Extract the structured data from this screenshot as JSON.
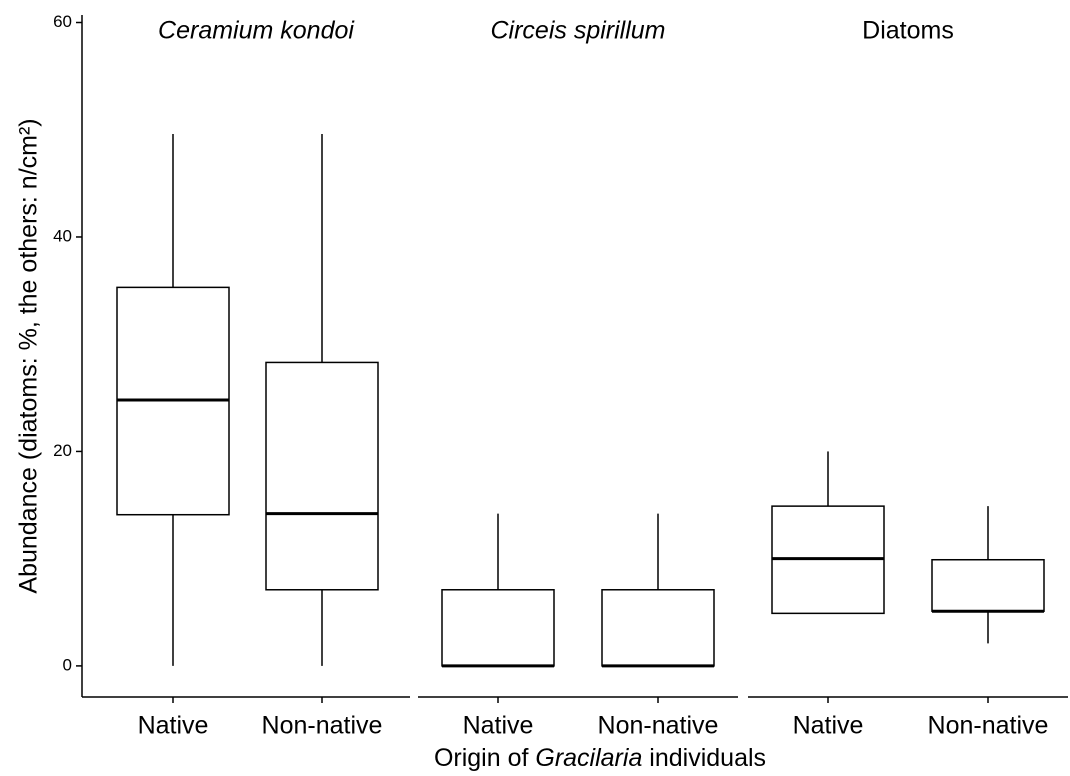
{
  "chart_data": {
    "type": "box",
    "ylabel": "Abundance (diatoms: %, the others: n/cm²)",
    "xlabel": [
      "Origin of ",
      "Gracilaria",
      " individuals"
    ],
    "ylim": [
      -2.9,
      60.7
    ],
    "yticks": [
      0,
      20,
      40,
      60
    ],
    "color": "#000000",
    "panels": [
      {
        "title": "Ceramium kondoi",
        "italic": true,
        "categories": [
          "Native",
          "Non-native"
        ],
        "boxes": [
          {
            "min": 0,
            "q1": 14.1,
            "median": 24.8,
            "q3": 35.3,
            "max": 49.6
          },
          {
            "min": 0,
            "q1": 7.1,
            "median": 14.2,
            "q3": 28.3,
            "max": 49.6
          }
        ]
      },
      {
        "title": "Circeis spirillum",
        "italic": true,
        "categories": [
          "Native",
          "Non-native"
        ],
        "boxes": [
          {
            "min": 0,
            "q1": 0,
            "median": 0,
            "q3": 7.1,
            "max": 14.2
          },
          {
            "min": 0,
            "q1": 0,
            "median": 0,
            "q3": 7.1,
            "max": 14.2
          }
        ]
      },
      {
        "title": "Diatoms",
        "italic": false,
        "categories": [
          "Native",
          "Non-native"
        ],
        "boxes": [
          {
            "min": 4.9,
            "q1": 4.9,
            "median": 10,
            "q3": 14.9,
            "max": 20
          },
          {
            "min": 2.1,
            "q1": 5.1,
            "median": 5.1,
            "q3": 9.9,
            "max": 14.9
          }
        ]
      }
    ]
  }
}
